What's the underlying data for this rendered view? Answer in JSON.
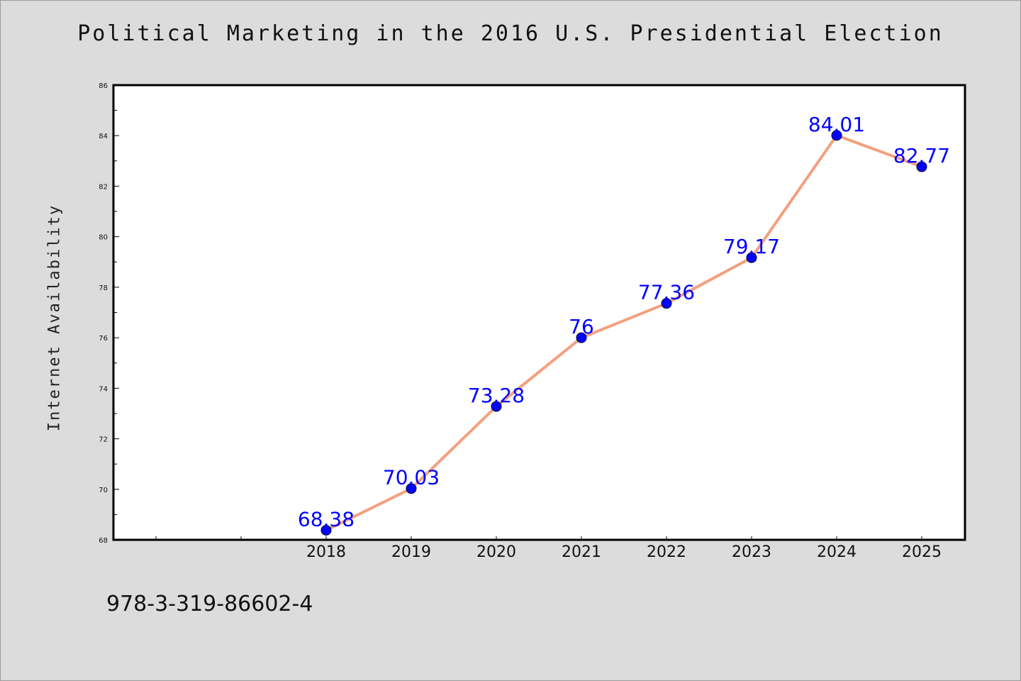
{
  "chart_data": {
    "type": "line",
    "title": "Political Marketing in the 2016 U.S. Presidential Election",
    "xlabel": "",
    "ylabel": "Internet Availability",
    "categories": [
      "2018",
      "2019",
      "2020",
      "2021",
      "2022",
      "2023",
      "2024",
      "2025"
    ],
    "series": [
      {
        "values": [
          68.38,
          70.03,
          73.28,
          76,
          77.36,
          79.17,
          84.01,
          82.77
        ],
        "labels": [
          "68.38",
          "70.03",
          "73.28",
          "76",
          "77.36",
          "79.17",
          "84.01",
          "82.77"
        ],
        "line_color": "#f4a07f",
        "marker_color": "#0000ff"
      }
    ],
    "ylim": [
      68,
      86
    ],
    "yticks": [
      "68",
      "70",
      "72",
      "74",
      "76",
      "78",
      "80",
      "82",
      "84",
      "86"
    ],
    "grid": false,
    "legend": "none"
  },
  "footer": {
    "code": "978-3-319-86602-4"
  }
}
